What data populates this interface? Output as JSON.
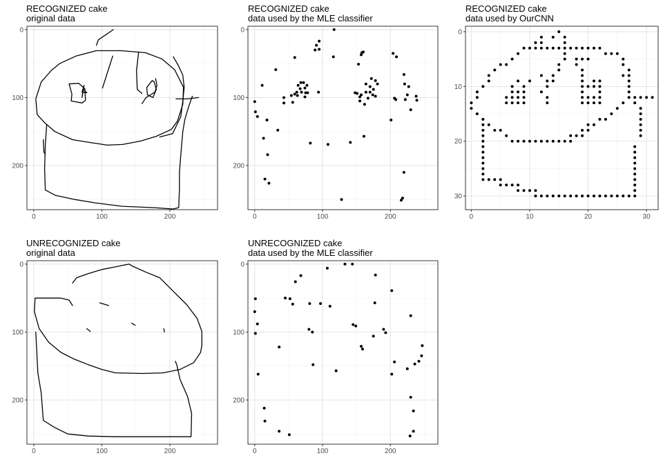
{
  "chart_data": [
    {
      "type": "line",
      "title_line1": "RECOGNIZED cake",
      "title_line2": "original data",
      "xlim": [
        -10,
        270
      ],
      "ylim": [
        265,
        -5
      ],
      "xticks": [
        0,
        100,
        200
      ],
      "yticks": [
        0,
        100,
        200
      ],
      "grid": true,
      "y_reversed": true,
      "strokes": [
        [
          [
            117,
            0
          ],
          [
            95,
            15
          ],
          [
            92,
            23
          ]
        ],
        [
          [
            38,
            50
          ],
          [
            26,
            60
          ],
          [
            11,
            77
          ],
          [
            3,
            102
          ],
          [
            5,
            125
          ],
          [
            16,
            137
          ],
          [
            31,
            150
          ],
          [
            57,
            162
          ],
          [
            82,
            166
          ],
          [
            108,
            170
          ],
          [
            131,
            169
          ],
          [
            157,
            164
          ],
          [
            180,
            157
          ],
          [
            202,
            147
          ],
          [
            211,
            135
          ],
          [
            219,
            110
          ],
          [
            220,
            85
          ],
          [
            207,
            59
          ],
          [
            188,
            43
          ],
          [
            164,
            34
          ],
          [
            128,
            31
          ],
          [
            92,
            31
          ],
          [
            62,
            39
          ],
          [
            38,
            50
          ]
        ],
        [
          [
            116,
            39
          ],
          [
            108,
            64
          ],
          [
            101,
            86
          ]
        ],
        [
          [
            52,
            80
          ],
          [
            56,
            95
          ],
          [
            55,
            105
          ],
          [
            71,
            108
          ],
          [
            76,
            104
          ],
          [
            75,
            87
          ],
          [
            66,
            79
          ],
          [
            52,
            80
          ]
        ],
        [
          [
            74,
            82
          ],
          [
            72,
            92
          ],
          [
            71,
            100
          ],
          [
            73,
            88
          ],
          [
            78,
            93
          ],
          [
            71,
            92
          ],
          [
            74,
            82
          ]
        ],
        [
          [
            154,
            33
          ],
          [
            151,
            60
          ],
          [
            152,
            88
          ],
          [
            159,
            94
          ]
        ],
        [
          [
            174,
            75
          ],
          [
            166,
            85
          ],
          [
            167,
            96
          ],
          [
            175,
            100
          ],
          [
            180,
            88
          ],
          [
            177,
            77
          ],
          [
            174,
            75
          ]
        ],
        [
          [
            159,
            109
          ],
          [
            165,
            100
          ],
          [
            170,
            97
          ],
          [
            178,
            92
          ],
          [
            181,
            82
          ],
          [
            179,
            72
          ]
        ],
        [
          [
            205,
            40
          ],
          [
            212,
            52
          ],
          [
            219,
            67
          ],
          [
            221,
            85
          ],
          [
            219,
            105
          ],
          [
            216,
            128
          ],
          [
            204,
            153
          ],
          [
            185,
            158
          ]
        ],
        [
          [
            209,
            102
          ],
          [
            226,
            102
          ],
          [
            242,
            100
          ]
        ],
        [
          [
            233,
            98
          ],
          [
            228,
            112
          ],
          [
            222,
            132
          ],
          [
            219,
            150
          ],
          [
            217,
            172
          ],
          [
            214,
            210
          ],
          [
            214,
            235
          ],
          [
            213,
            262
          ],
          [
            205,
            264
          ],
          [
            175,
            262
          ],
          [
            130,
            260
          ],
          [
            90,
            255
          ],
          [
            60,
            250
          ],
          [
            32,
            244
          ],
          [
            17,
            236
          ],
          [
            16,
            205
          ],
          [
            17,
            170
          ],
          [
            19,
            140
          ]
        ],
        [
          [
            14,
            162
          ],
          [
            15,
            180
          ],
          [
            17,
            184
          ]
        ]
      ]
    },
    {
      "type": "scatter",
      "title_line1": "RECOGNIZED cake",
      "title_line2": "data used by the MLE classifier",
      "xlim": [
        -10,
        270
      ],
      "ylim": [
        265,
        -5
      ],
      "xticks": [
        0,
        100,
        200
      ],
      "yticks": [
        0,
        100,
        200
      ],
      "grid": true,
      "y_reversed": true,
      "points": [
        [
          117,
          0
        ],
        [
          160,
          33
        ],
        [
          158,
          34
        ],
        [
          157,
          37
        ],
        [
          95,
          17
        ],
        [
          91,
          23
        ],
        [
          95,
          29
        ],
        [
          89,
          30
        ],
        [
          116,
          40
        ],
        [
          153,
          51
        ],
        [
          204,
          35
        ],
        [
          209,
          40
        ],
        [
          59,
          41
        ],
        [
          220,
          66
        ],
        [
          31,
          59
        ],
        [
          11,
          82
        ],
        [
          64,
          82
        ],
        [
          68,
          78
        ],
        [
          72,
          78
        ],
        [
          77,
          82
        ],
        [
          74,
          86
        ],
        [
          67,
          87
        ],
        [
          62,
          92
        ],
        [
          59,
          95
        ],
        [
          69,
          92
        ],
        [
          75,
          93
        ],
        [
          78,
          93
        ],
        [
          63,
          97
        ],
        [
          74,
          99
        ],
        [
          56,
          107
        ],
        [
          54,
          97
        ],
        [
          43,
          100
        ],
        [
          43,
          108
        ],
        [
          94,
          92
        ],
        [
          164,
          80
        ],
        [
          170,
          84
        ],
        [
          172,
          72
        ],
        [
          178,
          75
        ],
        [
          181,
          80
        ],
        [
          175,
          88
        ],
        [
          170,
          92
        ],
        [
          167,
          101
        ],
        [
          174,
          96
        ],
        [
          178,
          98
        ],
        [
          164,
          92
        ],
        [
          157,
          96
        ],
        [
          155,
          99
        ],
        [
          151,
          94
        ],
        [
          162,
          110
        ],
        [
          155,
          105
        ],
        [
          148,
          93
        ],
        [
          221,
          80
        ],
        [
          227,
          84
        ],
        [
          225,
          96
        ],
        [
          222,
          103
        ],
        [
          206,
          101
        ],
        [
          238,
          98
        ],
        [
          239,
          104
        ],
        [
          230,
          118
        ],
        [
          0,
          106
        ],
        [
          1,
          121
        ],
        [
          4,
          128
        ],
        [
          18,
          133
        ],
        [
          34,
          148
        ],
        [
          13,
          160
        ],
        [
          108,
          169
        ],
        [
          82,
          167
        ],
        [
          141,
          166
        ],
        [
          161,
          157
        ],
        [
          201,
          133
        ],
        [
          208,
          103
        ],
        [
          19,
          184
        ],
        [
          15,
          220
        ],
        [
          21,
          226
        ],
        [
          220,
          210
        ],
        [
          128,
          250
        ],
        [
          216,
          251
        ],
        [
          218,
          248
        ]
      ]
    },
    {
      "type": "scatter",
      "title_line1": "RECOGNIZED cake",
      "title_line2": "data used by OurCNN",
      "xlim": [
        -1,
        32
      ],
      "ylim": [
        32.5,
        -1
      ],
      "xticks": [
        0,
        10,
        20,
        30
      ],
      "yticks": [
        0,
        10,
        20,
        30
      ],
      "grid": true,
      "y_reversed": true
    },
    {
      "type": "line",
      "title_line1": "UNRECOGNIZED cake",
      "title_line2": "original data",
      "xlim": [
        -10,
        270
      ],
      "ylim": [
        265,
        -5
      ],
      "xticks": [
        0,
        100,
        200
      ],
      "yticks": [
        0,
        100,
        200
      ],
      "grid": true,
      "y_reversed": true,
      "strokes": [
        [
          [
            57,
            28
          ],
          [
            63,
            20
          ],
          [
            80,
            14
          ],
          [
            100,
            8
          ],
          [
            120,
            4
          ],
          [
            140,
            0
          ],
          [
            145,
            3
          ],
          [
            165,
            12
          ],
          [
            185,
            20
          ],
          [
            205,
            40
          ],
          [
            225,
            60
          ],
          [
            240,
            80
          ],
          [
            247,
            99
          ],
          [
            247,
            120
          ],
          [
            245,
            130
          ],
          [
            235,
            145
          ],
          [
            215,
            155
          ],
          [
            190,
            160
          ],
          [
            160,
            161
          ],
          [
            120,
            160
          ],
          [
            100,
            155
          ],
          [
            80,
            148
          ],
          [
            60,
            140
          ],
          [
            40,
            130
          ],
          [
            22,
            115
          ],
          [
            8,
            95
          ],
          [
            1,
            70
          ],
          [
            2,
            50
          ],
          [
            20,
            50
          ],
          [
            40,
            50
          ],
          [
            52,
            53
          ],
          [
            57,
            61
          ]
        ],
        [
          [
            97,
            57
          ],
          [
            110,
            61
          ]
        ],
        [
          [
            78,
            95
          ],
          [
            83,
            99
          ]
        ],
        [
          [
            144,
            87
          ],
          [
            149,
            90
          ]
        ],
        [
          [
            191,
            95
          ],
          [
            192,
            100
          ]
        ],
        [
          [
            3,
            100
          ],
          [
            6,
            160
          ],
          [
            11,
            190
          ],
          [
            14,
            230
          ],
          [
            30,
            240
          ],
          [
            50,
            250
          ],
          [
            80,
            253
          ],
          [
            120,
            254
          ],
          [
            160,
            254
          ],
          [
            200,
            254
          ],
          [
            231,
            254
          ],
          [
            232,
            220
          ],
          [
            226,
            195
          ],
          [
            215,
            170
          ],
          [
            210,
            148
          ],
          [
            208,
            143
          ]
        ]
      ]
    },
    {
      "type": "scatter",
      "title_line1": "UNRECOGNIZED cake",
      "title_line2": "data used by the MLE classifier",
      "xlim": [
        -10,
        270
      ],
      "ylim": [
        265,
        -5
      ],
      "xticks": [
        0,
        100,
        200
      ],
      "yticks": [
        0,
        100,
        200
      ],
      "grid": true,
      "y_reversed": true,
      "points": [
        [
          133,
          0
        ],
        [
          144,
          0
        ],
        [
          107,
          6
        ],
        [
          178,
          16
        ],
        [
          68,
          17
        ],
        [
          60,
          26
        ],
        [
          1,
          51
        ],
        [
          45,
          50
        ],
        [
          52,
          51
        ],
        [
          56,
          59
        ],
        [
          81,
          58
        ],
        [
          97,
          58
        ],
        [
          111,
          62
        ],
        [
          177,
          57
        ],
        [
          202,
          39
        ],
        [
          0,
          70
        ],
        [
          4,
          88
        ],
        [
          1,
          102
        ],
        [
          80,
          96
        ],
        [
          85,
          100
        ],
        [
          145,
          89
        ],
        [
          149,
          91
        ],
        [
          175,
          106
        ],
        [
          190,
          96
        ],
        [
          193,
          101
        ],
        [
          36,
          122
        ],
        [
          157,
          121
        ],
        [
          159,
          125
        ],
        [
          86,
          148
        ],
        [
          120,
          157
        ],
        [
          206,
          144
        ],
        [
          5,
          162
        ],
        [
          202,
          162
        ],
        [
          225,
          154
        ],
        [
          236,
          147
        ],
        [
          242,
          143
        ],
        [
          246,
          135
        ],
        [
          247,
          120
        ],
        [
          230,
          76
        ],
        [
          14,
          212
        ],
        [
          15,
          231
        ],
        [
          36,
          246
        ],
        [
          51,
          251
        ],
        [
          230,
          196
        ],
        [
          234,
          216
        ],
        [
          234,
          246
        ],
        [
          229,
          253
        ]
      ]
    }
  ]
}
